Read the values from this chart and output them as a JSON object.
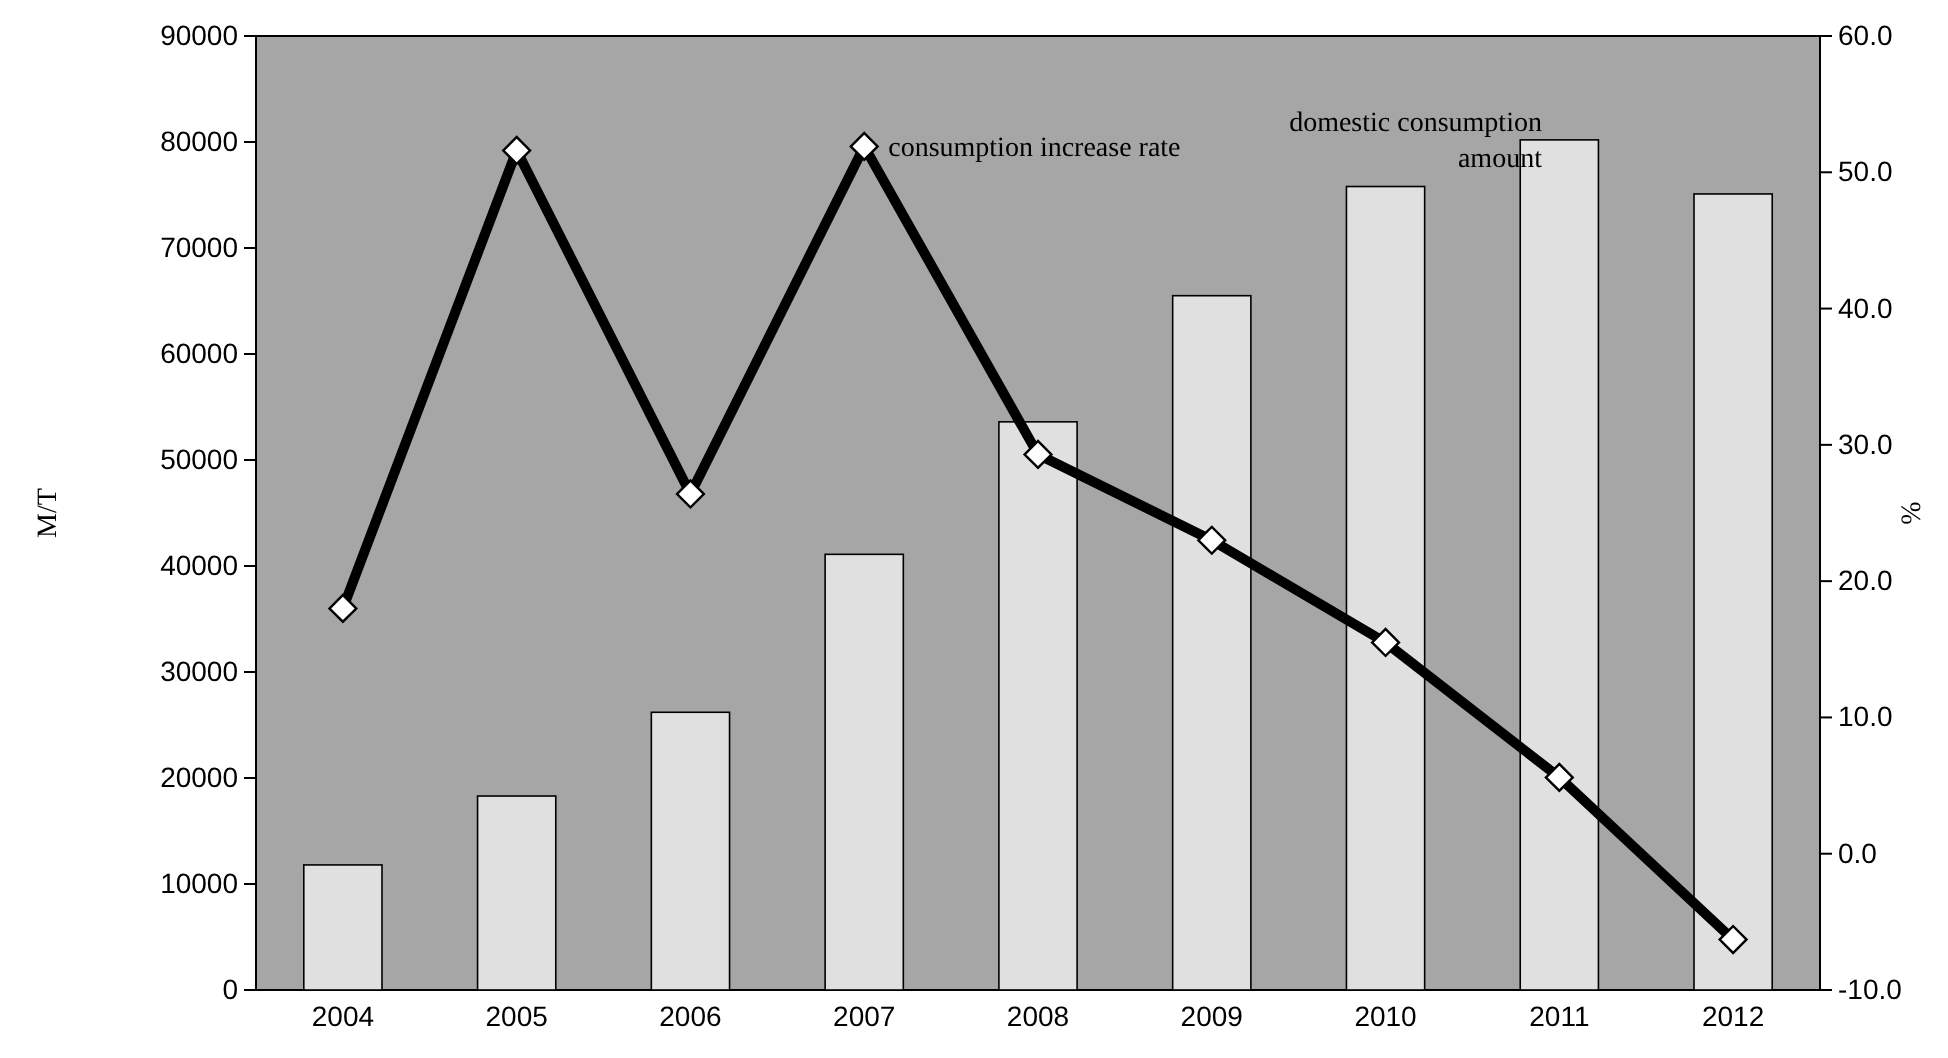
{
  "chart_data": {
    "type": "bar",
    "categories": [
      "2004",
      "2005",
      "2006",
      "2007",
      "2008",
      "2009",
      "2010",
      "2011",
      "2012"
    ],
    "ylabel": "M/T",
    "y2label": "%",
    "ylim": [
      0,
      90000
    ],
    "yticks": [
      0,
      10000,
      20000,
      30000,
      40000,
      50000,
      60000,
      70000,
      80000,
      90000
    ],
    "y2lim": [
      -10,
      60
    ],
    "y2ticks": [
      {
        "value": -10,
        "label": "-10.0"
      },
      {
        "value": 0,
        "label": "0.0"
      },
      {
        "value": 10,
        "label": "10.0"
      },
      {
        "value": 20,
        "label": "20.0"
      },
      {
        "value": 30,
        "label": "30.0"
      },
      {
        "value": 40,
        "label": "40.0"
      },
      {
        "value": 50,
        "label": "50.0"
      },
      {
        "value": 60,
        "label": "60.0"
      }
    ],
    "grid": false,
    "marker": "diamond",
    "series": [
      {
        "name": "domestic consumption amount",
        "color": "#e0e0e0",
        "values": [
          11800,
          18300,
          26200,
          41100,
          53600,
          65500,
          75800,
          80200,
          75100
        ]
      },
      {
        "name": "consumption increase rate",
        "type": "line",
        "axis": "y2",
        "color": "#000000",
        "values": [
          18.0,
          51.6,
          26.4,
          51.9,
          29.3,
          23.0,
          15.5,
          5.6,
          -6.3
        ]
      }
    ]
  }
}
